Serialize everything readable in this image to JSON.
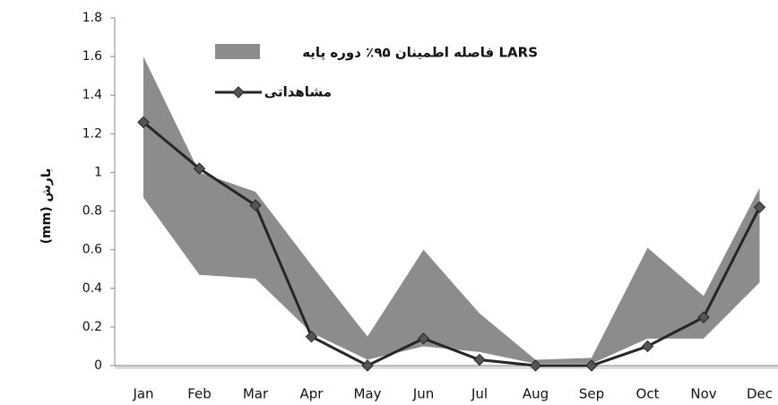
{
  "chart_data": {
    "type": "line-band",
    "ylabel": "(mm) بارش",
    "categories": [
      "Jan",
      "Feb",
      "Mar",
      "Apr",
      "May",
      "Jun",
      "Jul",
      "Aug",
      "Sep",
      "Oct",
      "Nov",
      "Dec"
    ],
    "series": [
      {
        "name": "فاصله اطمینان ۹۵٪ دوره پایه LARS",
        "color": "#8c8c8c",
        "upper": [
          1.6,
          1.0,
          0.9,
          0.52,
          0.15,
          0.6,
          0.27,
          0.03,
          0.04,
          0.61,
          0.36,
          0.92
        ],
        "lower": [
          0.87,
          0.47,
          0.45,
          0.17,
          0.03,
          0.1,
          0.07,
          0.01,
          0.01,
          0.14,
          0.14,
          0.43
        ]
      },
      {
        "name": "مشاهداتی",
        "color": "#262626",
        "values": [
          1.26,
          1.02,
          0.83,
          0.15,
          0,
          0.14,
          0.03,
          0,
          0,
          0.1,
          0.25,
          0.82
        ]
      }
    ],
    "ylim": [
      0,
      1.8
    ],
    "yticks": [
      0,
      0.2,
      0.4,
      0.6,
      0.8,
      1,
      1.2,
      1.4,
      1.6,
      1.8
    ],
    "grid": false
  }
}
